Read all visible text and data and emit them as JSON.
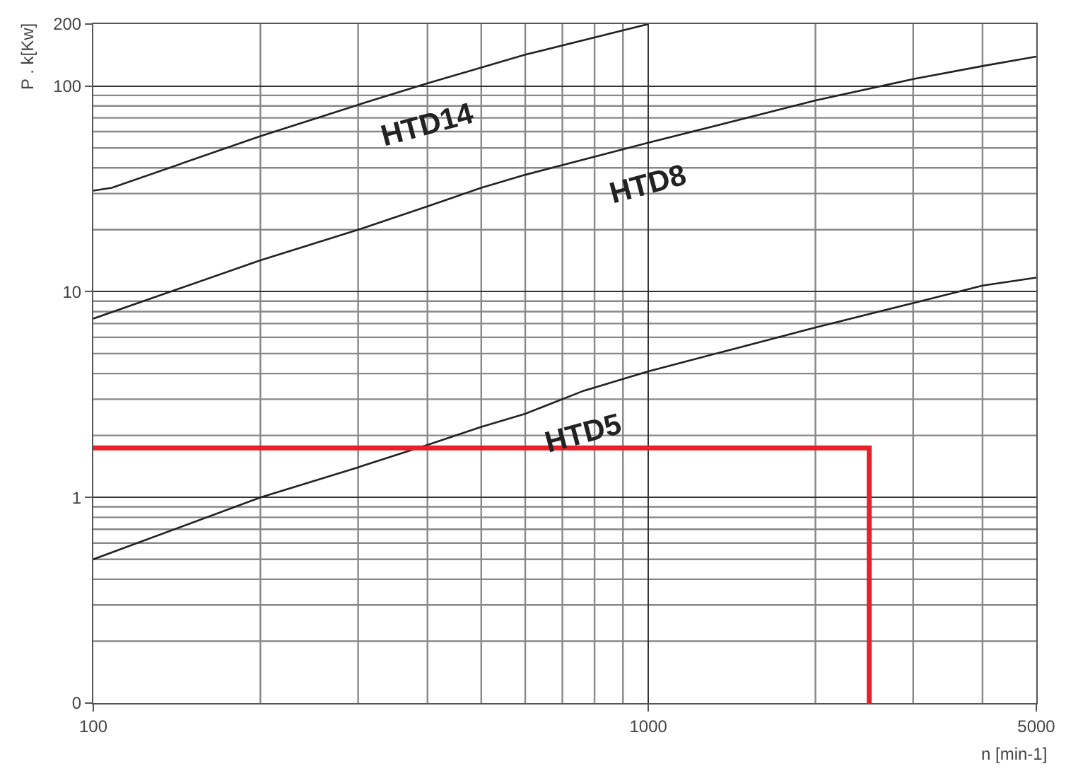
{
  "chart_data": {
    "type": "line",
    "xlabel": "n [min-1]",
    "ylabel": "P . k[Kw]",
    "log": "xy",
    "grid": true,
    "marker": "none",
    "line_style": "solid",
    "xlim": [
      100,
      5000
    ],
    "xticks": [
      100,
      1000,
      5000
    ],
    "ylim": [
      0.1,
      200
    ],
    "yticks": [
      {
        "value": 0.1,
        "label": "0"
      },
      1,
      10,
      100,
      200
    ],
    "series": [
      {
        "name": "HTD14",
        "color": "#222222",
        "x": [
          100,
          108,
          200,
          300,
          400,
          500,
          600,
          1000
        ],
        "values": [
          31,
          32,
          57,
          81,
          103,
          123,
          142,
          200
        ]
      },
      {
        "name": "HTD8",
        "color": "#222222",
        "x": [
          100,
          200,
          300,
          400,
          500,
          600,
          1000,
          2000,
          3000,
          4000,
          5000
        ],
        "values": [
          7.4,
          14.2,
          20,
          26,
          32,
          37,
          53,
          85,
          108,
          125,
          139
        ]
      },
      {
        "name": "HTD5",
        "color": "#222222",
        "x": [
          100,
          200,
          300,
          400,
          500,
          600,
          765,
          1000,
          2000,
          3000,
          4000,
          5000
        ],
        "values": [
          0.5,
          1.0,
          1.4,
          1.8,
          2.2,
          2.55,
          3.3,
          4.1,
          6.7,
          8.8,
          10.7,
          11.7
        ]
      },
      {
        "color": "#e8202a",
        "x": [
          100,
          2500,
          2500
        ],
        "values": [
          1.74,
          1.74,
          0.1
        ]
      }
    ]
  }
}
